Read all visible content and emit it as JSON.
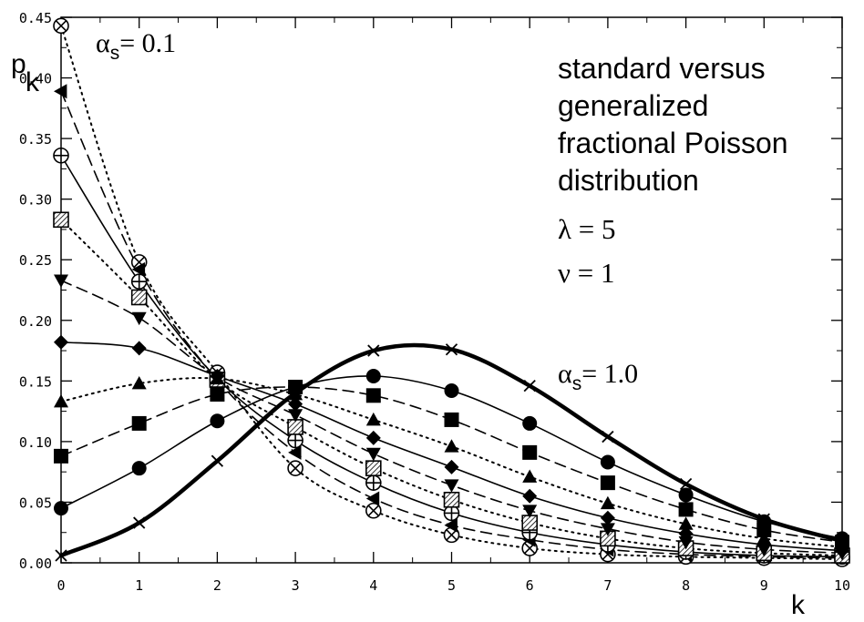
{
  "chart_data": {
    "type": "line",
    "title": "",
    "xlabel": "k",
    "ylabel_main": "p",
    "ylabel_sub": "k",
    "xlim": [
      0,
      10
    ],
    "ylim": [
      0,
      0.45
    ],
    "x_ticks": [
      0,
      1,
      2,
      3,
      4,
      5,
      6,
      7,
      8,
      9,
      10
    ],
    "x_tick_labels": [
      "0",
      "1",
      "2",
      "3",
      "4",
      "5",
      "6",
      "7",
      "8",
      "9",
      "10"
    ],
    "y_ticks": [
      0,
      0.05,
      0.1,
      0.15,
      0.2,
      0.25,
      0.3,
      0.35,
      0.4,
      0.45
    ],
    "y_tick_labels": [
      "0.00",
      "0.05",
      "0.10",
      "0.15",
      "0.20",
      "0.25",
      "0.30",
      "0.35",
      "0.40",
      "0.45"
    ],
    "grid": false,
    "annotations": {
      "alpha_top_symbol": "α",
      "alpha_top_sub": "s",
      "alpha_top_value": "= 0.1",
      "alpha_right_symbol": "α",
      "alpha_right_sub": "s",
      "alpha_right_value": "= 1.0",
      "desc_lines": [
        "standard versus",
        "generalized",
        "fractional Poisson",
        "distribution"
      ],
      "lambda_line": "λ = 5",
      "nu_line": "ν = 1"
    },
    "x": [
      0,
      1,
      2,
      3,
      4,
      5,
      6,
      7,
      8,
      9,
      10
    ],
    "series": [
      {
        "marker": "circle-x",
        "style": "dotted",
        "values": [
          0.443,
          0.248,
          0.157,
          0.078,
          0.043,
          0.023,
          0.012,
          0.007,
          0.005,
          0.004,
          0.003
        ]
      },
      {
        "marker": "tri-left",
        "style": "dashed",
        "values": [
          0.389,
          0.242,
          0.151,
          0.091,
          0.053,
          0.031,
          0.019,
          0.011,
          0.007,
          0.005,
          0.004
        ]
      },
      {
        "marker": "circle-plus",
        "style": "solid",
        "values": [
          0.336,
          0.232,
          0.152,
          0.101,
          0.066,
          0.041,
          0.025,
          0.015,
          0.009,
          0.006,
          0.005
        ]
      },
      {
        "marker": "square-hatched",
        "style": "dotted",
        "values": [
          0.283,
          0.219,
          0.151,
          0.112,
          0.078,
          0.052,
          0.033,
          0.02,
          0.012,
          0.008,
          0.006
        ]
      },
      {
        "marker": "tri-down",
        "style": "dashed",
        "values": [
          0.233,
          0.202,
          0.153,
          0.122,
          0.09,
          0.064,
          0.043,
          0.028,
          0.017,
          0.011,
          0.008
        ]
      },
      {
        "marker": "diamond",
        "style": "solid",
        "values": [
          0.182,
          0.177,
          0.154,
          0.131,
          0.103,
          0.079,
          0.055,
          0.037,
          0.024,
          0.015,
          0.01
        ]
      },
      {
        "marker": "tri-up",
        "style": "dotted",
        "values": [
          0.133,
          0.148,
          0.152,
          0.139,
          0.118,
          0.096,
          0.071,
          0.049,
          0.032,
          0.02,
          0.013
        ]
      },
      {
        "marker": "square",
        "style": "dashed",
        "values": [
          0.088,
          0.115,
          0.139,
          0.145,
          0.138,
          0.118,
          0.091,
          0.066,
          0.044,
          0.027,
          0.017
        ]
      },
      {
        "marker": "circle",
        "style": "solid",
        "values": [
          0.045,
          0.078,
          0.117,
          0.145,
          0.154,
          0.142,
          0.115,
          0.083,
          0.056,
          0.034,
          0.02
        ]
      },
      {
        "marker": "cross",
        "style": "thick",
        "values": [
          0.006,
          0.033,
          0.084,
          0.14,
          0.175,
          0.176,
          0.146,
          0.104,
          0.065,
          0.036,
          0.018
        ]
      }
    ]
  }
}
